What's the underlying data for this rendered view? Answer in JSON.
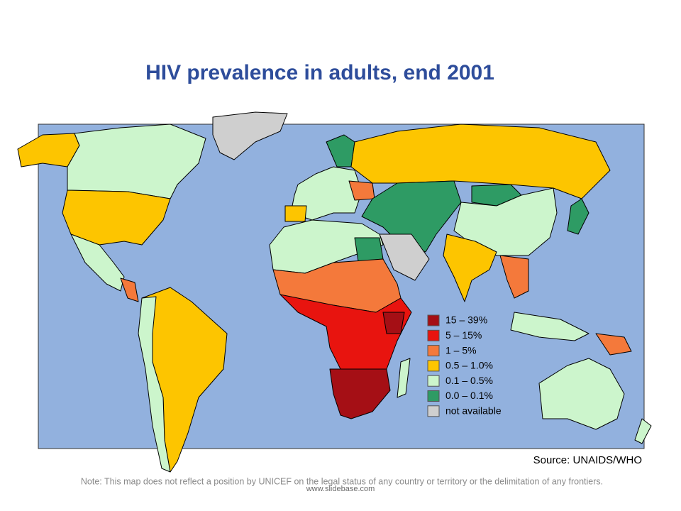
{
  "title": "HIV prevalence in adults, end 2001",
  "legend": [
    {
      "label": "15 – 39%",
      "color": "#a50f15"
    },
    {
      "label": "5 – 15%",
      "color": "#e8140f"
    },
    {
      "label": "1 – 5%",
      "color": "#f4793b"
    },
    {
      "label": "0.5 – 1.0%",
      "color": "#fdc500"
    },
    {
      "label": "0.1 – 0.5%",
      "color": "#ccf5cc"
    },
    {
      "label": "0.0 – 0.1%",
      "color": "#2e9b64"
    },
    {
      "label": "not available",
      "color": "#cfcfcf"
    }
  ],
  "source": "Source: UNAIDS/WHO",
  "note": "Note: This map does not reflect a position by UNICEF on the legal status of any country  or territory or the delimitation of any frontiers.",
  "watermark": "www.slidebase.com"
}
